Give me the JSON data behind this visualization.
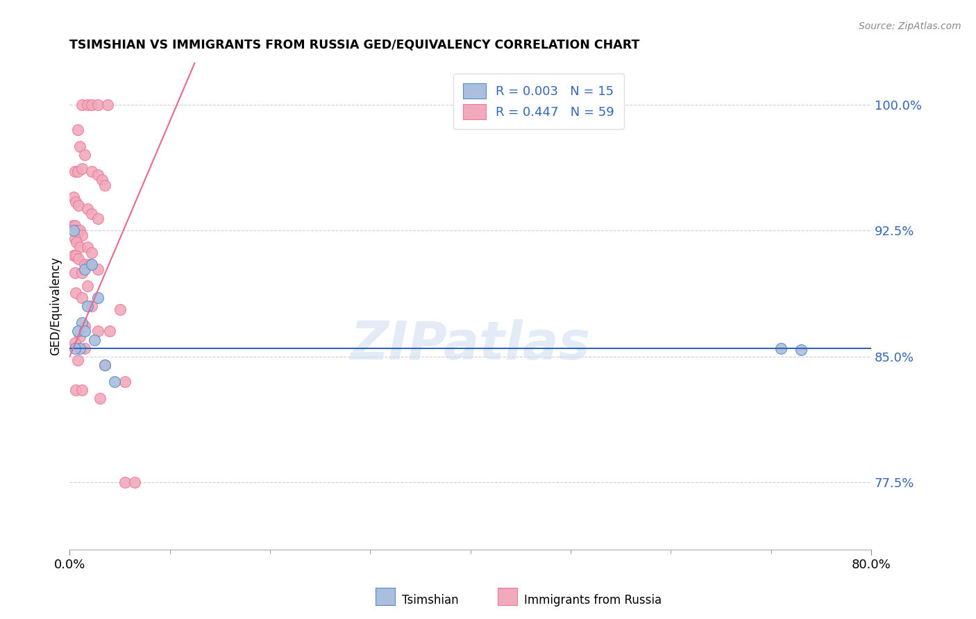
{
  "title": "TSIMSHIAN VS IMMIGRANTS FROM RUSSIA GED/EQUIVALENCY CORRELATION CHART",
  "source": "Source: ZipAtlas.com",
  "ylabel": "GED/Equivalency",
  "yticks": [
    77.5,
    85.0,
    92.5,
    100.0
  ],
  "ytick_labels": [
    "77.5%",
    "85.0%",
    "92.5%",
    "100.0%"
  ],
  "watermark": "ZIPatlas",
  "legend_r1": "R = 0.003",
  "legend_n1": "N = 15",
  "legend_r2": "R = 0.447",
  "legend_n2": "N = 59",
  "legend_label1": "Tsimshian",
  "legend_label2": "Immigrants from Russia",
  "blue_color": "#AABFDD",
  "pink_color": "#F0AABC",
  "blue_scatter_edge": "#5588CC",
  "pink_scatter_edge": "#EE7799",
  "blue_line_color": "#3366BB",
  "pink_line_color": "#EE6688",
  "tsimshian_points": [
    [
      0.4,
      92.5
    ],
    [
      1.5,
      90.2
    ],
    [
      2.2,
      90.5
    ],
    [
      1.8,
      88.0
    ],
    [
      2.8,
      88.5
    ],
    [
      1.2,
      87.0
    ],
    [
      0.8,
      86.5
    ],
    [
      1.5,
      86.5
    ],
    [
      2.5,
      86.0
    ],
    [
      1.0,
      85.5
    ],
    [
      0.5,
      85.5
    ],
    [
      3.5,
      84.5
    ],
    [
      4.5,
      83.5
    ],
    [
      71.0,
      85.5
    ],
    [
      73.0,
      85.4
    ]
  ],
  "russia_points": [
    [
      1.2,
      100.0
    ],
    [
      1.8,
      100.0
    ],
    [
      2.2,
      100.0
    ],
    [
      2.8,
      100.0
    ],
    [
      3.8,
      100.0
    ],
    [
      0.8,
      98.5
    ],
    [
      1.0,
      97.5
    ],
    [
      1.5,
      97.0
    ],
    [
      0.5,
      96.0
    ],
    [
      0.8,
      96.0
    ],
    [
      1.2,
      96.2
    ],
    [
      2.2,
      96.0
    ],
    [
      2.8,
      95.8
    ],
    [
      3.2,
      95.5
    ],
    [
      3.5,
      95.2
    ],
    [
      0.4,
      94.5
    ],
    [
      0.6,
      94.2
    ],
    [
      0.9,
      94.0
    ],
    [
      1.8,
      93.8
    ],
    [
      2.2,
      93.5
    ],
    [
      2.8,
      93.2
    ],
    [
      0.3,
      92.8
    ],
    [
      0.5,
      92.8
    ],
    [
      0.7,
      92.5
    ],
    [
      0.9,
      92.5
    ],
    [
      1.0,
      92.5
    ],
    [
      1.2,
      92.2
    ],
    [
      0.5,
      92.0
    ],
    [
      0.7,
      91.8
    ],
    [
      1.0,
      91.5
    ],
    [
      1.8,
      91.5
    ],
    [
      2.2,
      91.2
    ],
    [
      0.4,
      91.0
    ],
    [
      0.6,
      91.0
    ],
    [
      0.9,
      90.8
    ],
    [
      1.5,
      90.5
    ],
    [
      2.0,
      90.5
    ],
    [
      2.8,
      90.2
    ],
    [
      0.5,
      90.0
    ],
    [
      1.2,
      90.0
    ],
    [
      1.8,
      89.2
    ],
    [
      0.6,
      88.8
    ],
    [
      1.2,
      88.5
    ],
    [
      2.2,
      88.0
    ],
    [
      5.0,
      87.8
    ],
    [
      4.0,
      86.5
    ],
    [
      1.5,
      86.8
    ],
    [
      2.8,
      86.5
    ],
    [
      1.0,
      86.2
    ],
    [
      0.5,
      85.8
    ],
    [
      1.5,
      85.5
    ],
    [
      0.8,
      84.8
    ],
    [
      3.5,
      84.5
    ],
    [
      5.5,
      83.5
    ],
    [
      3.0,
      82.5
    ],
    [
      0.6,
      83.0
    ],
    [
      1.2,
      83.0
    ],
    [
      5.5,
      77.5
    ],
    [
      6.5,
      77.5
    ]
  ],
  "xmin": 0.0,
  "xmax": 80.0,
  "ymin": 73.5,
  "ymax": 102.5,
  "background_color": "#FFFFFF",
  "grid_color": "#CCCCDD",
  "blue_trend_y_intercept": 85.5,
  "blue_trend_slope": 0.0,
  "pink_trend_x0": 0.0,
  "pink_trend_y0": 85.0,
  "pink_trend_x1": 10.0,
  "pink_trend_y1": 99.0
}
